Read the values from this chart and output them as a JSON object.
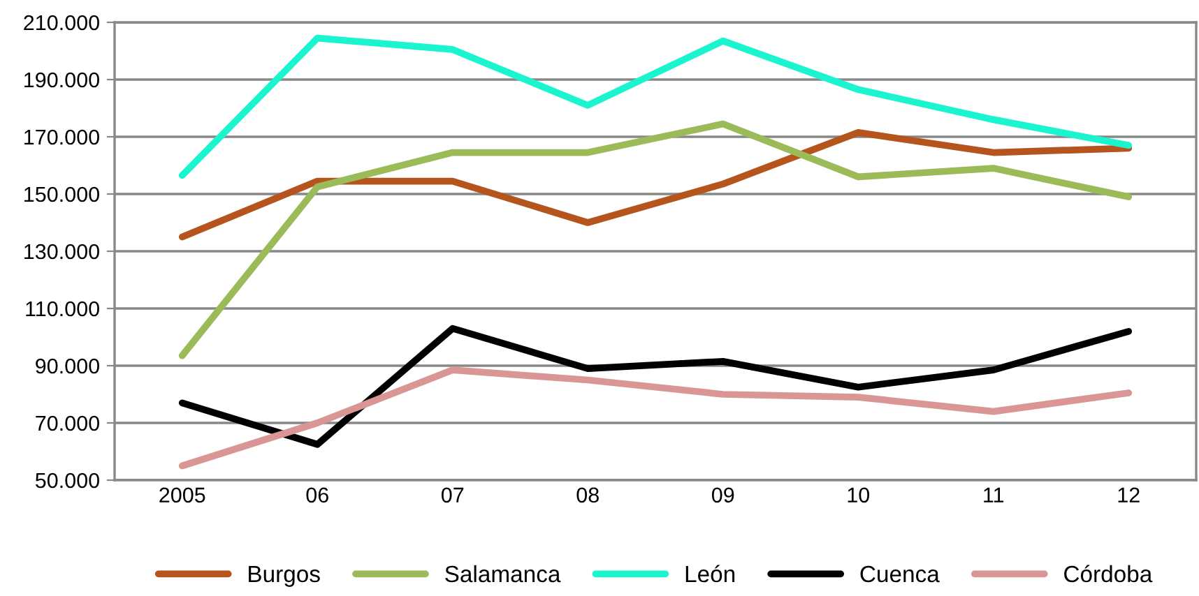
{
  "chart_data": {
    "type": "line",
    "categories": [
      "2005",
      "06",
      "07",
      "08",
      "09",
      "10",
      "11",
      "12"
    ],
    "series": [
      {
        "name": "Burgos",
        "color": "#b5541c",
        "values": [
          135000,
          154500,
          154500,
          140000,
          153500,
          171500,
          164500,
          166000
        ]
      },
      {
        "name": "Salamanca",
        "color": "#9bbb59",
        "values": [
          93500,
          152500,
          164500,
          164500,
          174500,
          156000,
          159000,
          149000
        ]
      },
      {
        "name": "León",
        "color": "#1af5d0",
        "values": [
          156500,
          204500,
          200500,
          181000,
          203500,
          186500,
          176000,
          167000
        ]
      },
      {
        "name": "Cuenca",
        "color": "#000000",
        "values": [
          77000,
          62500,
          103000,
          89000,
          91500,
          82500,
          88500,
          102000
        ]
      },
      {
        "name": "Córdoba",
        "color": "#d99694",
        "values": [
          55000,
          70000,
          88500,
          85000,
          80000,
          79000,
          74000,
          80500
        ]
      }
    ],
    "ylim": [
      50000,
      210000
    ],
    "yticks": [
      {
        "value": 50000,
        "label": "50.000"
      },
      {
        "value": 70000,
        "label": "70.000"
      },
      {
        "value": 90000,
        "label": "90.000"
      },
      {
        "value": 110000,
        "label": "110.000"
      },
      {
        "value": 130000,
        "label": "130.000"
      },
      {
        "value": 150000,
        "label": "150.000"
      },
      {
        "value": 170000,
        "label": "170.000"
      },
      {
        "value": 190000,
        "label": "190.000"
      },
      {
        "value": 210000,
        "label": "210.000"
      }
    ],
    "grid": "y",
    "legend": "bottom",
    "marker": "none",
    "line_style": "solid"
  }
}
